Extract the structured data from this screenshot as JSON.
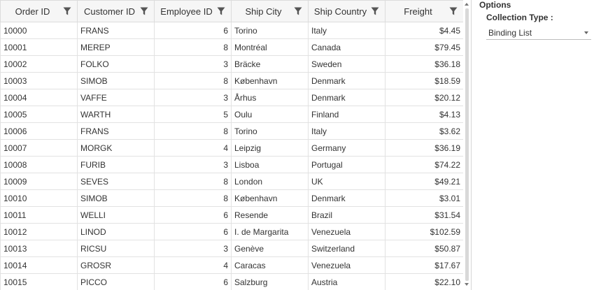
{
  "grid": {
    "columns": [
      {
        "label": "Order ID"
      },
      {
        "label": "Customer ID"
      },
      {
        "label": "Employee ID"
      },
      {
        "label": "Ship City"
      },
      {
        "label": "Ship Country"
      },
      {
        "label": "Freight"
      }
    ],
    "rows": [
      [
        "10000",
        "FRANS",
        "6",
        "Torino",
        "Italy",
        "$4.45"
      ],
      [
        "10001",
        "MEREP",
        "8",
        "Montréal",
        "Canada",
        "$79.45"
      ],
      [
        "10002",
        "FOLKO",
        "3",
        "Bräcke",
        "Sweden",
        "$36.18"
      ],
      [
        "10003",
        "SIMOB",
        "8",
        "København",
        "Denmark",
        "$18.59"
      ],
      [
        "10004",
        "VAFFE",
        "3",
        "Århus",
        "Denmark",
        "$20.12"
      ],
      [
        "10005",
        "WARTH",
        "5",
        "Oulu",
        "Finland",
        "$4.13"
      ],
      [
        "10006",
        "FRANS",
        "8",
        "Torino",
        "Italy",
        "$3.62"
      ],
      [
        "10007",
        "MORGK",
        "4",
        "Leipzig",
        "Germany",
        "$36.19"
      ],
      [
        "10008",
        "FURIB",
        "3",
        "Lisboa",
        "Portugal",
        "$74.22"
      ],
      [
        "10009",
        "SEVES",
        "8",
        "London",
        "UK",
        "$49.21"
      ],
      [
        "10010",
        "SIMOB",
        "8",
        "København",
        "Denmark",
        "$3.01"
      ],
      [
        "10011",
        "WELLI",
        "6",
        "Resende",
        "Brazil",
        "$31.54"
      ],
      [
        "10012",
        "LINOD",
        "6",
        "I. de Margarita",
        "Venezuela",
        "$102.59"
      ],
      [
        "10013",
        "RICSU",
        "3",
        "Genève",
        "Switzerland",
        "$50.87"
      ],
      [
        "10014",
        "GROSR",
        "4",
        "Caracas",
        "Venezuela",
        "$17.67"
      ],
      [
        "10015",
        "PICCO",
        "6",
        "Salzburg",
        "Austria",
        "$22.10"
      ]
    ]
  },
  "options": {
    "title": "Options",
    "collection_type_label": "Collection Type :",
    "collection_type_value": "Binding List"
  },
  "icons": {
    "filter": "filter-funnel-icon"
  },
  "colors": {
    "header_bg": "#f6f6f6",
    "border": "#e2e2e2",
    "icon": "#555555"
  }
}
